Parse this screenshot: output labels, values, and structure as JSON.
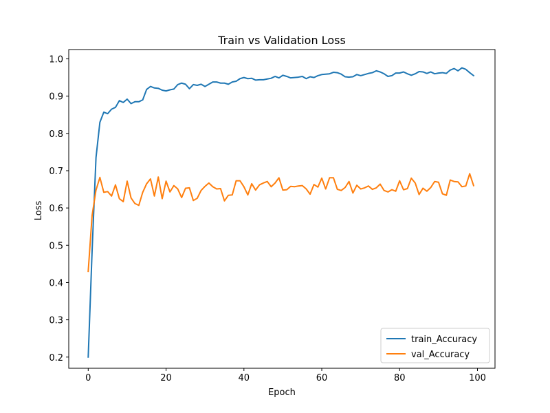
{
  "chart_data": {
    "type": "line",
    "title": "Train vs Validation Loss",
    "xlabel": "Epoch",
    "ylabel": "Loss",
    "xlim": [
      -5,
      104.5
    ],
    "ylim": [
      0.17,
      1.025
    ],
    "xticks": [
      0,
      20,
      40,
      60,
      80,
      100
    ],
    "yticks": [
      0.2,
      0.3,
      0.4,
      0.5,
      0.6,
      0.7,
      0.8,
      0.9,
      1.0
    ],
    "xtick_labels": [
      "0",
      "20",
      "40",
      "60",
      "80",
      "100"
    ],
    "ytick_labels": [
      "0.2",
      "0.3",
      "0.4",
      "0.5",
      "0.6",
      "0.7",
      "0.8",
      "0.9",
      "1.0"
    ],
    "grid": false,
    "legend_position": "lower-right",
    "series": [
      {
        "name": "train_Accuracy",
        "color": "#1f77b4",
        "x": [
          0,
          1,
          2,
          3,
          4,
          5,
          6,
          7,
          8,
          9,
          10,
          11,
          12,
          13,
          14,
          15,
          16,
          17,
          18,
          19,
          20,
          21,
          22,
          23,
          24,
          25,
          26,
          27,
          28,
          29,
          30,
          31,
          32,
          33,
          34,
          35,
          36,
          37,
          38,
          39,
          40,
          41,
          42,
          43,
          44,
          45,
          46,
          47,
          48,
          49,
          50,
          51,
          52,
          53,
          54,
          55,
          56,
          57,
          58,
          59,
          60,
          61,
          62,
          63,
          64,
          65,
          66,
          67,
          68,
          69,
          70,
          71,
          72,
          73,
          74,
          75,
          76,
          77,
          78,
          79,
          80,
          81,
          82,
          83,
          84,
          85,
          86,
          87,
          88,
          89,
          90,
          91,
          92,
          93,
          94,
          95,
          96,
          97,
          98,
          99
        ],
        "values": [
          0.2,
          0.485,
          0.735,
          0.83,
          0.857,
          0.853,
          0.865,
          0.87,
          0.888,
          0.883,
          0.892,
          0.88,
          0.885,
          0.885,
          0.89,
          0.918,
          0.926,
          0.922,
          0.921,
          0.916,
          0.914,
          0.917,
          0.919,
          0.931,
          0.935,
          0.932,
          0.92,
          0.931,
          0.929,
          0.932,
          0.926,
          0.932,
          0.938,
          0.938,
          0.935,
          0.935,
          0.932,
          0.938,
          0.94,
          0.947,
          0.95,
          0.947,
          0.948,
          0.943,
          0.944,
          0.944,
          0.946,
          0.948,
          0.953,
          0.949,
          0.956,
          0.953,
          0.949,
          0.95,
          0.951,
          0.953,
          0.947,
          0.952,
          0.95,
          0.955,
          0.958,
          0.959,
          0.96,
          0.964,
          0.963,
          0.959,
          0.952,
          0.951,
          0.952,
          0.958,
          0.955,
          0.958,
          0.961,
          0.963,
          0.968,
          0.965,
          0.96,
          0.953,
          0.955,
          0.962,
          0.962,
          0.965,
          0.96,
          0.956,
          0.96,
          0.966,
          0.965,
          0.961,
          0.965,
          0.96,
          0.962,
          0.963,
          0.961,
          0.97,
          0.974,
          0.968,
          0.976,
          0.972,
          0.963,
          0.955
        ]
      },
      {
        "name": "val_Accuracy",
        "color": "#ff7f0e",
        "x": [
          0,
          1,
          2,
          3,
          4,
          5,
          6,
          7,
          8,
          9,
          10,
          11,
          12,
          13,
          14,
          15,
          16,
          17,
          18,
          19,
          20,
          21,
          22,
          23,
          24,
          25,
          26,
          27,
          28,
          29,
          30,
          31,
          32,
          33,
          34,
          35,
          36,
          37,
          38,
          39,
          40,
          41,
          42,
          43,
          44,
          45,
          46,
          47,
          48,
          49,
          50,
          51,
          52,
          53,
          54,
          55,
          56,
          57,
          58,
          59,
          60,
          61,
          62,
          63,
          64,
          65,
          66,
          67,
          68,
          69,
          70,
          71,
          72,
          73,
          74,
          75,
          76,
          77,
          78,
          79,
          80,
          81,
          82,
          83,
          84,
          85,
          86,
          87,
          88,
          89,
          90,
          91,
          92,
          93,
          94,
          95,
          96,
          97,
          98,
          99
        ],
        "values": [
          0.43,
          0.58,
          0.648,
          0.682,
          0.642,
          0.644,
          0.632,
          0.662,
          0.625,
          0.617,
          0.672,
          0.627,
          0.612,
          0.607,
          0.642,
          0.665,
          0.678,
          0.632,
          0.683,
          0.625,
          0.672,
          0.643,
          0.66,
          0.651,
          0.628,
          0.653,
          0.654,
          0.62,
          0.626,
          0.647,
          0.658,
          0.667,
          0.657,
          0.651,
          0.652,
          0.619,
          0.634,
          0.635,
          0.673,
          0.673,
          0.657,
          0.635,
          0.665,
          0.648,
          0.662,
          0.667,
          0.671,
          0.657,
          0.667,
          0.681,
          0.648,
          0.649,
          0.658,
          0.657,
          0.659,
          0.66,
          0.651,
          0.637,
          0.663,
          0.656,
          0.68,
          0.651,
          0.681,
          0.681,
          0.65,
          0.647,
          0.655,
          0.671,
          0.64,
          0.661,
          0.651,
          0.654,
          0.659,
          0.65,
          0.654,
          0.664,
          0.647,
          0.643,
          0.649,
          0.645,
          0.673,
          0.649,
          0.652,
          0.68,
          0.667,
          0.636,
          0.653,
          0.645,
          0.655,
          0.671,
          0.669,
          0.638,
          0.634,
          0.675,
          0.671,
          0.67,
          0.657,
          0.659,
          0.692,
          0.66
        ]
      }
    ]
  }
}
